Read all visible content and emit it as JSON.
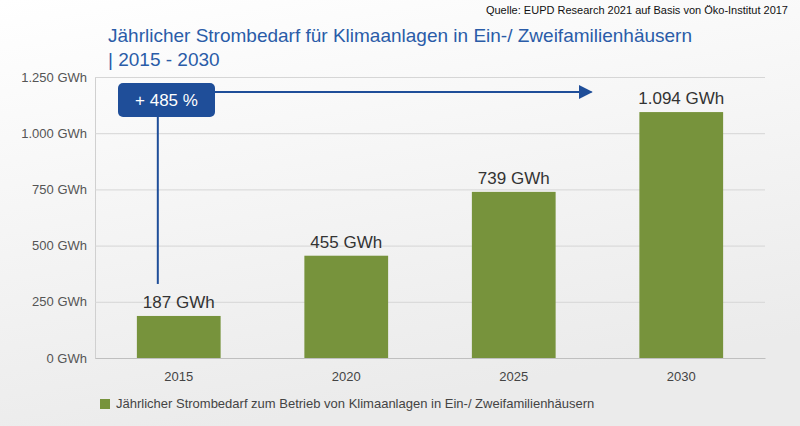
{
  "chart_data": {
    "type": "bar",
    "title": "Jährlicher Strombedarf für Klimaanlagen in Ein-/ Zweifamilienhäusern",
    "subtitle": "| 2015 - 2030",
    "source": "Quelle: EUPD Research 2021 auf Basis von Öko-Institut 2017",
    "categories": [
      "2015",
      "2020",
      "2025",
      "2030"
    ],
    "series": [
      {
        "name": "Jährlicher Strombedarf zum Betrieb von Klimaanlagen in Ein-/ Zweifamilienhäusern",
        "color": "#77933c",
        "values": [
          187,
          455,
          739,
          1094
        ],
        "value_labels": [
          "187 GWh",
          "455 GWh",
          "739 GWh",
          "1.094 GWh"
        ]
      }
    ],
    "ylim": [
      0,
      1250
    ],
    "yticks": [
      {
        "value": 0,
        "label": "0 GWh"
      },
      {
        "value": 250,
        "label": "250 GWh"
      },
      {
        "value": 500,
        "label": "500 GWh"
      },
      {
        "value": 750,
        "label": "750 GWh"
      },
      {
        "value": 1000,
        "label": "1.000 GWh"
      },
      {
        "value": 1250,
        "label": "1.250 GWh"
      }
    ],
    "grid": true,
    "data_labels": true,
    "legend": "bottom",
    "annotations": [
      {
        "text": "+ 485 %"
      }
    ]
  }
}
